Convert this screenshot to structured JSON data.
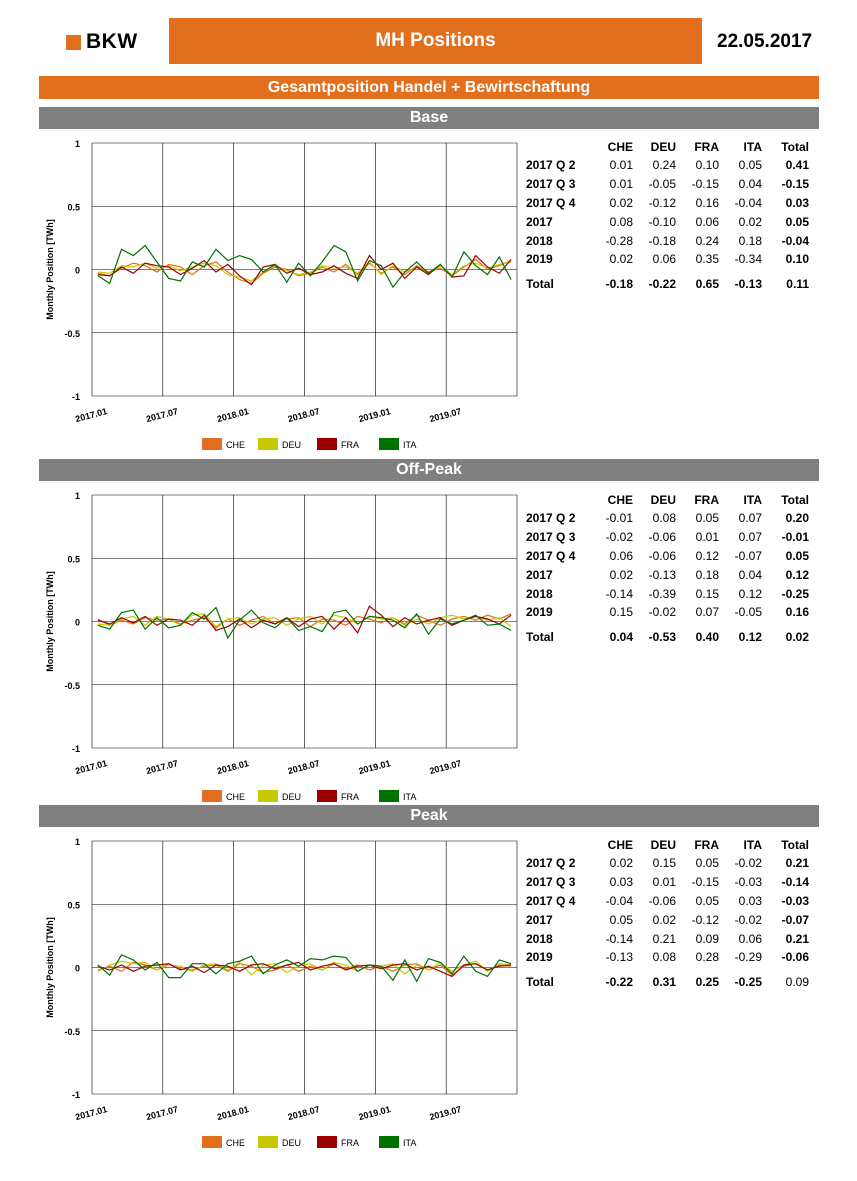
{
  "header": {
    "logo_text": "BKW",
    "title": "MH Positions",
    "date": "22.05.2017",
    "subtitle": "Gesamtposition Handel + Bewirtschaftung"
  },
  "colors": {
    "orange": "#e26f1d",
    "grey": "#808080",
    "CHE": "#e26f1d",
    "DEU": "#c8c800",
    "FRA": "#9b0000",
    "ITA": "#007000"
  },
  "table_headers": [
    "CHE",
    "DEU",
    "FRA",
    "ITA",
    "Total"
  ],
  "sections": [
    {
      "title": "Base",
      "rows": [
        {
          "label": "2017 Q 2",
          "che": "0.01",
          "deu": "0.24",
          "fra": "0.10",
          "ita": "0.05",
          "total": "0.41"
        },
        {
          "label": "2017 Q 3",
          "che": "0.01",
          "deu": "-0.05",
          "fra": "-0.15",
          "ita": "0.04",
          "total": "-0.15"
        },
        {
          "label": "2017 Q 4",
          "che": "0.02",
          "deu": "-0.12",
          "fra": "0.16",
          "ita": "-0.04",
          "total": "0.03"
        },
        {
          "label": "2017",
          "che": "0.08",
          "deu": "-0.10",
          "fra": "0.06",
          "ita": "0.02",
          "total": "0.05"
        },
        {
          "label": "2018",
          "che": "-0.28",
          "deu": "-0.18",
          "fra": "0.24",
          "ita": "0.18",
          "total": "-0.04"
        },
        {
          "label": "2019",
          "che": "0.02",
          "deu": "0.06",
          "fra": "0.35",
          "ita": "-0.34",
          "total": "0.10"
        }
      ],
      "grand_total": {
        "label": "Total",
        "che": "-0.18",
        "deu": "-0.22",
        "fra": "0.65",
        "ita": "-0.13",
        "total": "0.11"
      }
    },
    {
      "title": "Off-Peak",
      "rows": [
        {
          "label": "2017 Q 2",
          "che": "-0.01",
          "deu": "0.08",
          "fra": "0.05",
          "ita": "0.07",
          "total": "0.20"
        },
        {
          "label": "2017 Q 3",
          "che": "-0.02",
          "deu": "-0.06",
          "fra": "0.01",
          "ita": "0.07",
          "total": "-0.01"
        },
        {
          "label": "2017 Q 4",
          "che": "0.06",
          "deu": "-0.06",
          "fra": "0.12",
          "ita": "-0.07",
          "total": "0.05"
        },
        {
          "label": "2017",
          "che": "0.02",
          "deu": "-0.13",
          "fra": "0.18",
          "ita": "0.04",
          "total": "0.12"
        },
        {
          "label": "2018",
          "che": "-0.14",
          "deu": "-0.39",
          "fra": "0.15",
          "ita": "0.12",
          "total": "-0.25"
        },
        {
          "label": "2019",
          "che": "0.15",
          "deu": "-0.02",
          "fra": "0.07",
          "ita": "-0.05",
          "total": "0.16"
        }
      ],
      "grand_total": {
        "label": "Total",
        "che": "0.04",
        "deu": "-0.53",
        "fra": "0.40",
        "ita": "0.12",
        "total": "0.02"
      }
    },
    {
      "title": "Peak",
      "rows": [
        {
          "label": "2017 Q 2",
          "che": "0.02",
          "deu": "0.15",
          "fra": "0.05",
          "ita": "-0.02",
          "total": "0.21"
        },
        {
          "label": "2017 Q 3",
          "che": "0.03",
          "deu": "0.01",
          "fra": "-0.15",
          "ita": "-0.03",
          "total": "-0.14"
        },
        {
          "label": "2017 Q 4",
          "che": "-0.04",
          "deu": "-0.06",
          "fra": "0.05",
          "ita": "0.03",
          "total": "-0.03"
        },
        {
          "label": "2017",
          "che": "0.05",
          "deu": "0.02",
          "fra": "-0.12",
          "ita": "-0.02",
          "total": "-0.07"
        },
        {
          "label": "2018",
          "che": "-0.14",
          "deu": "0.21",
          "fra": "0.09",
          "ita": "0.06",
          "total": "0.21"
        },
        {
          "label": "2019",
          "che": "-0.13",
          "deu": "0.08",
          "fra": "0.28",
          "ita": "-0.29",
          "total": "-0.06"
        }
      ],
      "grand_total": {
        "label": "Total",
        "che": "-0.22",
        "deu": "0.31",
        "fra": "0.25",
        "ita": "-0.25",
        "total": "0.09"
      }
    }
  ],
  "chart_data": [
    {
      "type": "line",
      "ylabel": "Monthly Position [TWh]",
      "ylim": [
        -1,
        1
      ],
      "yticks": [
        "1",
        "0.5",
        "0",
        "-0.5",
        "-1"
      ],
      "xticks": [
        "2017.01",
        "2017.07",
        "2018.01",
        "2018.07",
        "2019.01",
        "2019.07"
      ],
      "legend_position": "bottom",
      "x": [
        "2017.01",
        "2017.02",
        "2017.03",
        "2017.04",
        "2017.05",
        "2017.06",
        "2017.07",
        "2017.08",
        "2017.09",
        "2017.10",
        "2017.11",
        "2017.12",
        "2018.01",
        "2018.02",
        "2018.03",
        "2018.04",
        "2018.05",
        "2018.06",
        "2018.07",
        "2018.08",
        "2018.09",
        "2018.10",
        "2018.11",
        "2018.12",
        "2019.01",
        "2019.02",
        "2019.03",
        "2019.04",
        "2019.05",
        "2019.06",
        "2019.07",
        "2019.08",
        "2019.09",
        "2019.10",
        "2019.11",
        "2019.12"
      ],
      "series": [
        {
          "name": "CHE",
          "color": "#e26f1d",
          "values": [
            -0.03,
            -0.05,
            0.01,
            0.05,
            0.03,
            -0.02,
            0.04,
            0.02,
            -0.04,
            0.03,
            0.06,
            -0.02,
            -0.08,
            -0.11,
            -0.03,
            0.02,
            0.0,
            -0.05,
            -0.03,
            0.02,
            -0.02,
            0.04,
            -0.04,
            0.05,
            -0.03,
            0.02,
            -0.04,
            0.03,
            -0.02,
            0.01,
            -0.05,
            0.02,
            0.08,
            0.0,
            0.03,
            0.07
          ]
        },
        {
          "name": "DEU",
          "color": "#c8c800",
          "values": [
            -0.02,
            -0.03,
            0.03,
            0.02,
            0.05,
            0.01,
            0.03,
            -0.01,
            0.02,
            0.05,
            0.03,
            -0.04,
            -0.06,
            -0.09,
            -0.02,
            0.03,
            -0.01,
            -0.04,
            -0.02,
            0.03,
            0.01,
            0.02,
            -0.03,
            0.06,
            -0.04,
            0.03,
            -0.02,
            0.02,
            -0.03,
            0.03,
            -0.04,
            0.03,
            0.05,
            0.01,
            0.04,
            0.06
          ]
        },
        {
          "name": "FRA",
          "color": "#9b0000",
          "values": [
            -0.04,
            -0.05,
            0.02,
            -0.03,
            0.05,
            0.03,
            0.02,
            -0.04,
            0.01,
            0.07,
            -0.02,
            0.04,
            -0.05,
            -0.12,
            0.02,
            0.04,
            -0.03,
            0.01,
            -0.04,
            -0.02,
            0.03,
            -0.03,
            -0.07,
            0.11,
            0.0,
            0.05,
            -0.07,
            0.02,
            -0.04,
            0.04,
            -0.06,
            -0.05,
            0.11,
            0.02,
            -0.03,
            0.08
          ]
        },
        {
          "name": "ITA",
          "color": "#007000",
          "values": [
            -0.05,
            -0.11,
            0.16,
            0.11,
            0.19,
            0.06,
            -0.07,
            -0.09,
            0.06,
            0.02,
            0.16,
            0.07,
            0.11,
            0.08,
            -0.02,
            0.04,
            -0.1,
            0.05,
            -0.05,
            0.06,
            0.19,
            0.14,
            -0.09,
            0.07,
            0.03,
            -0.14,
            -0.02,
            0.06,
            -0.03,
            0.04,
            -0.06,
            0.14,
            0.03,
            -0.04,
            0.1,
            -0.08
          ]
        }
      ]
    },
    {
      "type": "line",
      "ylabel": "Monthly Position [TWh]",
      "ylim": [
        -1,
        1
      ],
      "yticks": [
        "1",
        "0.5",
        "0",
        "-0.5",
        "-1"
      ],
      "xticks": [
        "2017.01",
        "2017.07",
        "2018.01",
        "2018.07",
        "2019.01",
        "2019.07"
      ],
      "legend_position": "bottom",
      "x": [
        "2017.01",
        "2017.02",
        "2017.03",
        "2017.04",
        "2017.05",
        "2017.06",
        "2017.07",
        "2017.08",
        "2017.09",
        "2017.10",
        "2017.11",
        "2017.12",
        "2018.01",
        "2018.02",
        "2018.03",
        "2018.04",
        "2018.05",
        "2018.06",
        "2018.07",
        "2018.08",
        "2018.09",
        "2018.10",
        "2018.11",
        "2018.12",
        "2019.01",
        "2019.02",
        "2019.03",
        "2019.04",
        "2019.05",
        "2019.06",
        "2019.07",
        "2019.08",
        "2019.09",
        "2019.10",
        "2019.11",
        "2019.12"
      ],
      "series": [
        {
          "name": "CHE",
          "color": "#e26f1d",
          "values": [
            0.02,
            -0.03,
            0.01,
            -0.02,
            0.03,
            0.01,
            0.02,
            -0.02,
            0.01,
            0.03,
            -0.05,
            0.02,
            -0.03,
            0.01,
            0.04,
            -0.02,
            0.02,
            0.03,
            -0.04,
            0.02,
            0.01,
            -0.03,
            0.04,
            0.02,
            -0.01,
            0.03,
            -0.02,
            0.05,
            0.01,
            -0.03,
            0.02,
            0.04,
            0.01,
            0.05,
            0.02,
            0.06
          ]
        },
        {
          "name": "DEU",
          "color": "#c8c800",
          "values": [
            -0.02,
            -0.03,
            0.02,
            0.04,
            -0.03,
            0.04,
            0.02,
            -0.03,
            0.05,
            0.06,
            -0.04,
            0.02,
            0.03,
            -0.02,
            0.02,
            0.03,
            -0.03,
            0.02,
            0.04,
            -0.02,
            0.05,
            0.03,
            -0.02,
            0.04,
            0.02,
            0.03,
            -0.03,
            0.02,
            -0.02,
            0.03,
            0.05,
            0.02,
            0.04,
            0.01,
            0.03,
            -0.04
          ]
        },
        {
          "name": "FRA",
          "color": "#9b0000",
          "values": [
            0.01,
            -0.02,
            0.03,
            -0.01,
            0.04,
            -0.03,
            0.02,
            0.01,
            -0.03,
            0.05,
            -0.07,
            -0.04,
            0.02,
            -0.05,
            0.01,
            -0.02,
            0.03,
            -0.04,
            0.02,
            0.04,
            -0.06,
            0.03,
            -0.09,
            0.12,
            0.05,
            -0.04,
            0.03,
            -0.02,
            0.01,
            0.03,
            -0.03,
            0.01,
            0.04,
            0.02,
            -0.02,
            0.05
          ]
        },
        {
          "name": "ITA",
          "color": "#007000",
          "values": [
            -0.03,
            -0.06,
            0.07,
            0.09,
            -0.06,
            0.03,
            -0.05,
            -0.03,
            0.07,
            0.02,
            0.11,
            -0.13,
            0.01,
            0.09,
            -0.01,
            -0.05,
            0.03,
            -0.07,
            -0.04,
            -0.08,
            0.07,
            0.09,
            -0.02,
            0.04,
            0.03,
            0.01,
            -0.05,
            0.06,
            -0.1,
            0.02,
            -0.02,
            0.01,
            0.05,
            -0.03,
            -0.02,
            -0.07
          ]
        }
      ]
    },
    {
      "type": "line",
      "ylabel": "Monthly Position [TWh]",
      "ylim": [
        -1,
        1
      ],
      "yticks": [
        "1",
        "0.5",
        "0",
        "-0.5",
        "-1"
      ],
      "xticks": [
        "2017.01",
        "2017.07",
        "2018.01",
        "2018.07",
        "2019.01",
        "2019.07"
      ],
      "legend_position": "bottom",
      "x": [
        "2017.01",
        "2017.02",
        "2017.03",
        "2017.04",
        "2017.05",
        "2017.06",
        "2017.07",
        "2017.08",
        "2017.09",
        "2017.10",
        "2017.11",
        "2017.12",
        "2018.01",
        "2018.02",
        "2018.03",
        "2018.04",
        "2018.05",
        "2018.06",
        "2018.07",
        "2018.08",
        "2018.09",
        "2018.10",
        "2018.11",
        "2018.12",
        "2019.01",
        "2019.02",
        "2019.03",
        "2019.04",
        "2019.05",
        "2019.06",
        "2019.07",
        "2019.08",
        "2019.09",
        "2019.10",
        "2019.11",
        "2019.12"
      ],
      "series": [
        {
          "name": "CHE",
          "color": "#e26f1d",
          "values": [
            -0.02,
            0.01,
            -0.03,
            0.04,
            0.02,
            -0.02,
            0.03,
            -0.01,
            -0.02,
            0.01,
            0.02,
            -0.03,
            0.03,
            0.01,
            -0.04,
            -0.02,
            0.02,
            -0.03,
            0.01,
            -0.02,
            0.03,
            -0.01,
            0.02,
            -0.02,
            0.01,
            -0.03,
            0.02,
            0.03,
            -0.02,
            0.02,
            -0.06,
            0.01,
            0.03,
            -0.02,
            0.02,
            0.01
          ]
        },
        {
          "name": "DEU",
          "color": "#c8c800",
          "values": [
            -0.03,
            0.02,
            0.05,
            0.03,
            0.04,
            -0.02,
            0.02,
            0.01,
            -0.03,
            0.02,
            0.03,
            -0.02,
            0.04,
            -0.06,
            0.02,
            0.03,
            -0.04,
            0.01,
            0.03,
            -0.02,
            0.04,
            0.02,
            -0.03,
            0.02,
            0.01,
            0.03,
            -0.05,
            0.02,
            -0.02,
            0.04,
            -0.03,
            0.02,
            0.05,
            -0.03,
            0.03,
            0.02
          ]
        },
        {
          "name": "FRA",
          "color": "#9b0000",
          "values": [
            0.01,
            -0.02,
            0.02,
            -0.03,
            0.01,
            0.02,
            0.03,
            -0.02,
            0.01,
            -0.04,
            0.02,
            0.01,
            -0.03,
            0.02,
            0.03,
            -0.01,
            0.02,
            0.04,
            -0.02,
            0.01,
            0.03,
            -0.02,
            0.01,
            0.02,
            -0.01,
            0.02,
            0.03,
            -0.02,
            0.01,
            -0.03,
            -0.07,
            0.02,
            0.03,
            -0.02,
            0.01,
            0.02
          ]
        },
        {
          "name": "ITA",
          "color": "#007000",
          "values": [
            0.02,
            -0.06,
            0.1,
            0.06,
            -0.02,
            0.04,
            -0.08,
            -0.08,
            0.03,
            0.03,
            -0.05,
            0.03,
            0.05,
            0.09,
            -0.05,
            0.02,
            0.06,
            0.01,
            0.07,
            0.06,
            0.09,
            0.08,
            -0.03,
            0.02,
            0.01,
            -0.1,
            0.06,
            -0.11,
            0.07,
            0.04,
            -0.05,
            0.09,
            -0.03,
            -0.07,
            0.06,
            0.03
          ]
        }
      ]
    }
  ]
}
